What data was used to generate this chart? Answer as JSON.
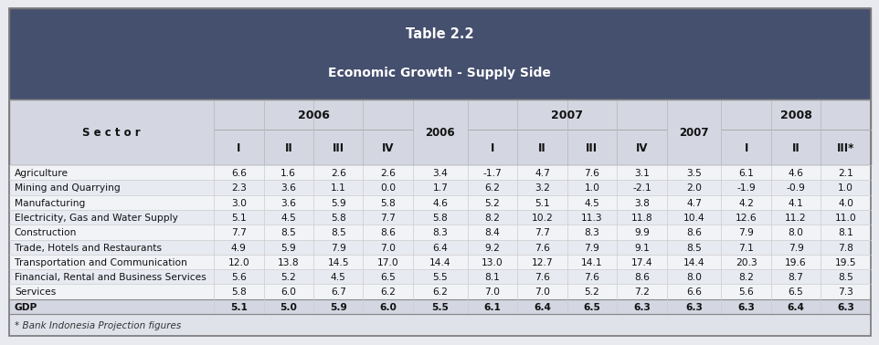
{
  "title1": "Table 2.2",
  "title2": "Economic Growth - Supply Side",
  "header_bg": "#454f6e",
  "header_text_color": "#ffffff",
  "col_header_bg": "#d4d7e2",
  "row_bg_light": "#f2f3f7",
  "row_bg_mid": "#e8eaf2",
  "gdp_bg": "#d4d7e2",
  "footer_bg": "#e0e2ea",
  "footer_text": "* Bank Indonesia Projection figures",
  "rows": [
    {
      "sector": "Agriculture",
      "data": [
        "6.6",
        "1.6",
        "2.6",
        "2.6",
        "3.4",
        "-1.7",
        "4.7",
        "7.6",
        "3.1",
        "3.5",
        "6.1",
        "4.6",
        "2.1"
      ],
      "bold": false
    },
    {
      "sector": "Mining and Quarrying",
      "data": [
        "2.3",
        "3.6",
        "1.1",
        "0.0",
        "1.7",
        "6.2",
        "3.2",
        "1.0",
        "-2.1",
        "2.0",
        "-1.9",
        "-0.9",
        "1.0"
      ],
      "bold": false
    },
    {
      "sector": "Manufacturing",
      "data": [
        "3.0",
        "3.6",
        "5.9",
        "5.8",
        "4.6",
        "5.2",
        "5.1",
        "4.5",
        "3.8",
        "4.7",
        "4.2",
        "4.1",
        "4.0"
      ],
      "bold": false
    },
    {
      "sector": "Electricity, Gas and Water Supply",
      "data": [
        "5.1",
        "4.5",
        "5.8",
        "7.7",
        "5.8",
        "8.2",
        "10.2",
        "11.3",
        "11.8",
        "10.4",
        "12.6",
        "11.2",
        "11.0"
      ],
      "bold": false
    },
    {
      "sector": "Construction",
      "data": [
        "7.7",
        "8.5",
        "8.5",
        "8.6",
        "8.3",
        "8.4",
        "7.7",
        "8.3",
        "9.9",
        "8.6",
        "7.9",
        "8.0",
        "8.1"
      ],
      "bold": false
    },
    {
      "sector": "Trade, Hotels and Restaurants",
      "data": [
        "4.9",
        "5.9",
        "7.9",
        "7.0",
        "6.4",
        "9.2",
        "7.6",
        "7.9",
        "9.1",
        "8.5",
        "7.1",
        "7.9",
        "7.8"
      ],
      "bold": false
    },
    {
      "sector": "Transportation and Communication",
      "data": [
        "12.0",
        "13.8",
        "14.5",
        "17.0",
        "14.4",
        "13.0",
        "12.7",
        "14.1",
        "17.4",
        "14.4",
        "20.3",
        "19.6",
        "19.5"
      ],
      "bold": false
    },
    {
      "sector": "Financial, Rental and Business Services",
      "data": [
        "5.6",
        "5.2",
        "4.5",
        "6.5",
        "5.5",
        "8.1",
        "7.6",
        "7.6",
        "8.6",
        "8.0",
        "8.2",
        "8.7",
        "8.5"
      ],
      "bold": false
    },
    {
      "sector": "Services",
      "data": [
        "5.8",
        "6.0",
        "6.7",
        "6.2",
        "6.2",
        "7.0",
        "7.0",
        "5.2",
        "7.2",
        "6.6",
        "5.6",
        "6.5",
        "7.3"
      ],
      "bold": false
    },
    {
      "sector": "GDP",
      "data": [
        "5.1",
        "5.0",
        "5.9",
        "6.0",
        "5.5",
        "6.1",
        "6.4",
        "6.5",
        "6.3",
        "6.3",
        "6.3",
        "6.4",
        "6.3"
      ],
      "bold": true
    }
  ],
  "col_widths": [
    2.55,
    0.62,
    0.62,
    0.62,
    0.62,
    0.68,
    0.62,
    0.62,
    0.62,
    0.62,
    0.68,
    0.62,
    0.62,
    0.62
  ]
}
